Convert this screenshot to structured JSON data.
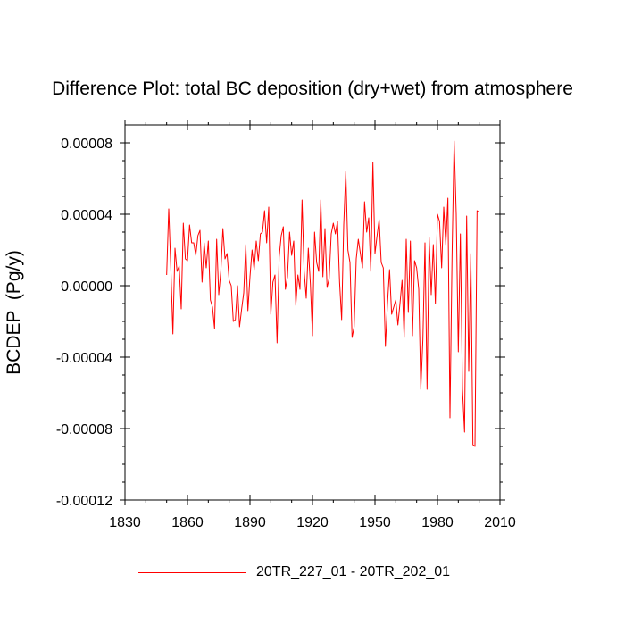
{
  "chart_data": {
    "type": "line",
    "title": "Difference Plot: total BC deposition (dry+wet) from atmosphere",
    "xlabel": "",
    "ylabel": "BCDEP  (Pg/y)",
    "xlim": [
      1830,
      2010
    ],
    "ylim": [
      -0.00012,
      9e-05
    ],
    "x_ticks": [
      1830,
      1860,
      1890,
      1920,
      1950,
      1980,
      2010
    ],
    "y_ticks": [
      -0.00012,
      -8e-05,
      -4e-05,
      0.0,
      4e-05,
      8e-05
    ],
    "y_tick_labels": [
      "-0.00012",
      "-0.00008",
      "-0.00004",
      "0.00000",
      "0.00004",
      "0.00008"
    ],
    "x_start": 1850,
    "series": [
      {
        "name": "20TR_227_01 - 20TR_202_01",
        "color": "#ff0000",
        "values": [
          6e-06,
          4.3e-05,
          1e-05,
          -2.7e-05,
          2.1e-05,
          8e-06,
          1.1e-05,
          -1.3e-05,
          3.5e-05,
          1.5e-05,
          1.4e-05,
          3.4e-05,
          2.4e-05,
          2.4e-05,
          1.7e-05,
          2.8e-05,
          3.1e-05,
          2e-06,
          2.4e-05,
          1e-05,
          2.5e-05,
          -8e-06,
          -1.2e-05,
          -2.4e-05,
          2.6e-05,
          -5e-06,
          8e-06,
          3.2e-05,
          1.5e-05,
          1.8e-05,
          3e-06,
          0.0,
          -2e-05,
          -1.9e-05,
          0.0,
          -2.3e-05,
          -1.3e-05,
          -4e-06,
          2.3e-05,
          -1.4e-05,
          5e-06,
          2e-05,
          9e-06,
          2.5e-05,
          1.4e-05,
          2.9e-05,
          3e-05,
          4.2e-05,
          2.4e-05,
          4.4e-05,
          -1.6e-05,
          2e-06,
          6e-06,
          -3.2e-05,
          1.6e-05,
          2.8e-05,
          3.3e-05,
          -2e-06,
          5e-06,
          3e-05,
          1.7e-05,
          2.5e-05,
          -1.1e-05,
          6e-06,
          -2e-06,
          4.8e-05,
          8e-06,
          -7e-06,
          2.1e-05,
          1e-06,
          -2.8e-05,
          3e-05,
          1.3e-05,
          8e-06,
          4.8e-05,
          5e-06,
          3.2e-05,
          -1e-06,
          4e-06,
          2.9e-05,
          3.5e-05,
          2.9e-05,
          3.6e-05,
          2e-06,
          -1.9e-05,
          3.4e-05,
          6.4e-05,
          2e-05,
          1.3e-05,
          -2.9e-05,
          -2.3e-05,
          1.5e-05,
          2.6e-05,
          1.8e-05,
          1e-05,
          4.7e-05,
          3e-05,
          3.8e-05,
          8e-06,
          6.9e-05,
          1.8e-05,
          2.8e-05,
          3.7e-05,
          1.3e-05,
          1e-05,
          -3.4e-05,
          -1e-05,
          9e-06,
          -1.6e-05,
          -1.2e-05,
          -8e-06,
          -2.2e-05,
          -1e-05,
          3e-06,
          -2.9e-05,
          2.6e-05,
          -1.5e-05,
          2.5e-05,
          -2.8e-05,
          1.4e-05,
          1e-05,
          -2e-06,
          -5.8e-05,
          -3e-05,
          2.4e-05,
          -5.8e-05,
          2.7e-05,
          -5e-06,
          2.3e-05,
          -1e-05,
          4e-05,
          3.6e-05,
          1e-05,
          4.4e-05,
          2.3e-05,
          4.9e-05,
          -7.4e-05,
          1.7e-05,
          8.1e-05,
          4e-05,
          -3.7e-05,
          2.9e-05,
          -5.8e-05,
          -8.2e-05,
          3.9e-05,
          -4.8e-05,
          1.8e-05,
          -8.9e-05,
          -9e-05,
          4.2e-05,
          4.1e-05
        ]
      }
    ],
    "legend_position": "bottom"
  }
}
